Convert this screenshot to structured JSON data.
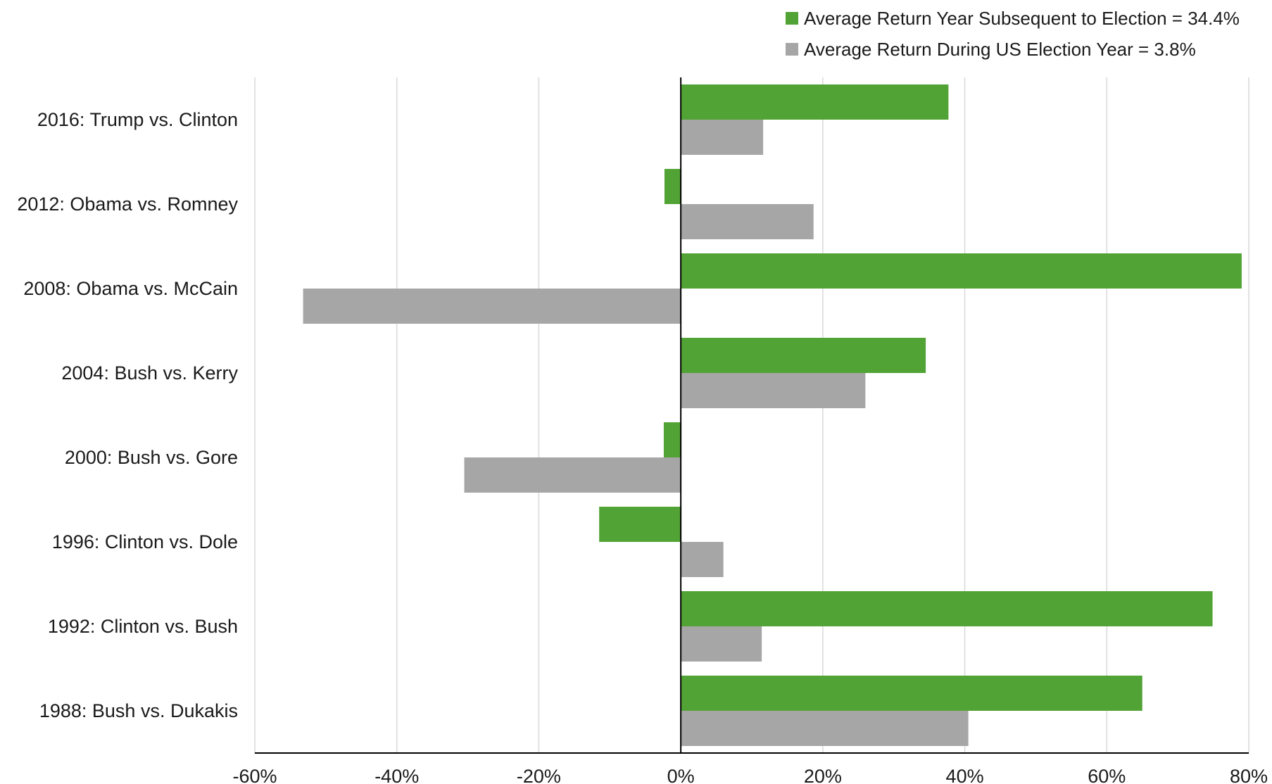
{
  "chart_data": {
    "type": "bar",
    "orientation": "horizontal",
    "categories": [
      "2016: Trump vs. Clinton",
      "2012: Obama vs. Romney",
      "2008: Obama vs. McCain",
      "2004: Bush vs. Kerry",
      "2000: Bush vs. Gore",
      "1996: Clinton vs. Dole",
      "1992: Clinton vs. Bush",
      "1988: Bush vs. Dukakis"
    ],
    "series": [
      {
        "name": "Average Return Year Subsequent to Election = 34.4%",
        "color": "#52a336",
        "values": [
          37.7,
          -2.3,
          79.0,
          34.5,
          -2.4,
          -11.5,
          74.9,
          65.0
        ]
      },
      {
        "name": "Average Return During US Election Year = 3.8%",
        "color": "#a6a6a6",
        "values": [
          11.6,
          18.7,
          -53.2,
          26.0,
          -30.5,
          6.0,
          11.4,
          40.5
        ]
      }
    ],
    "xlim": [
      -60,
      80
    ],
    "xticks": [
      -60,
      -40,
      -20,
      0,
      20,
      40,
      60,
      80
    ],
    "tick_labels": [
      "-60%",
      "-40%",
      "-20%",
      "0%",
      "20%",
      "40%",
      "60%",
      "80%"
    ],
    "grid": true,
    "legend_position": "top-right"
  }
}
